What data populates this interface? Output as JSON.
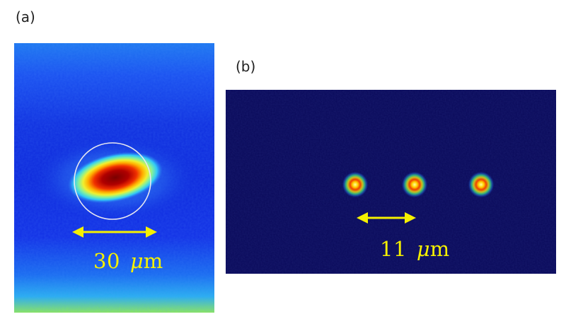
{
  "panels": {
    "a": {
      "label": "(a)",
      "scale_value": "30",
      "scale_unit_mu": "μ",
      "scale_unit_m": "m"
    },
    "b": {
      "label": "(b)",
      "scale_value": "11",
      "scale_unit_mu": "μ",
      "scale_unit_m": "m"
    }
  },
  "colors": {
    "scale_bar": "#f5f000",
    "background_a": "#1a3cf0",
    "background_b": "#0a0a5a",
    "spot_core": "#8b0000",
    "circle": "#e8e8f0"
  }
}
